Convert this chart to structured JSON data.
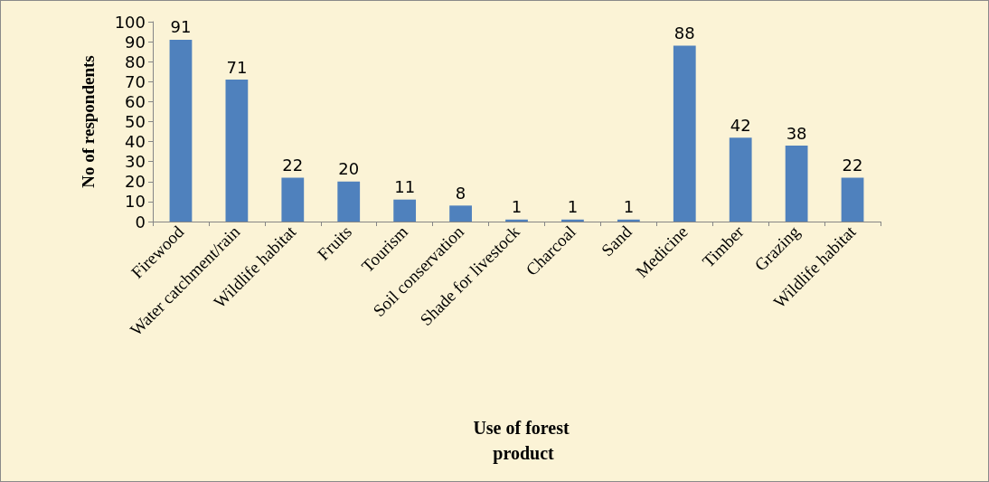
{
  "chart_data": {
    "type": "bar",
    "xlabel": "Use of forest product",
    "ylabel": "No of respondents",
    "categories": [
      "Firewood",
      "Water catchment/rain",
      "Wildlife habitat",
      "Fruits",
      "Tourism",
      "Soil conservation",
      "Shade for livestock",
      "Charcoal",
      "Sand",
      "Medicine",
      "Timber",
      "Grazing",
      "Wildlife habitat"
    ],
    "values": [
      91,
      71,
      22,
      20,
      11,
      8,
      1,
      1,
      1,
      88,
      42,
      38,
      22
    ],
    "color": "#4f81bd",
    "ylim": [
      0,
      100
    ],
    "yticks": [
      0,
      10,
      20,
      30,
      40,
      50,
      60,
      70,
      80,
      90,
      100
    ],
    "grid": false,
    "data_labels": true
  }
}
